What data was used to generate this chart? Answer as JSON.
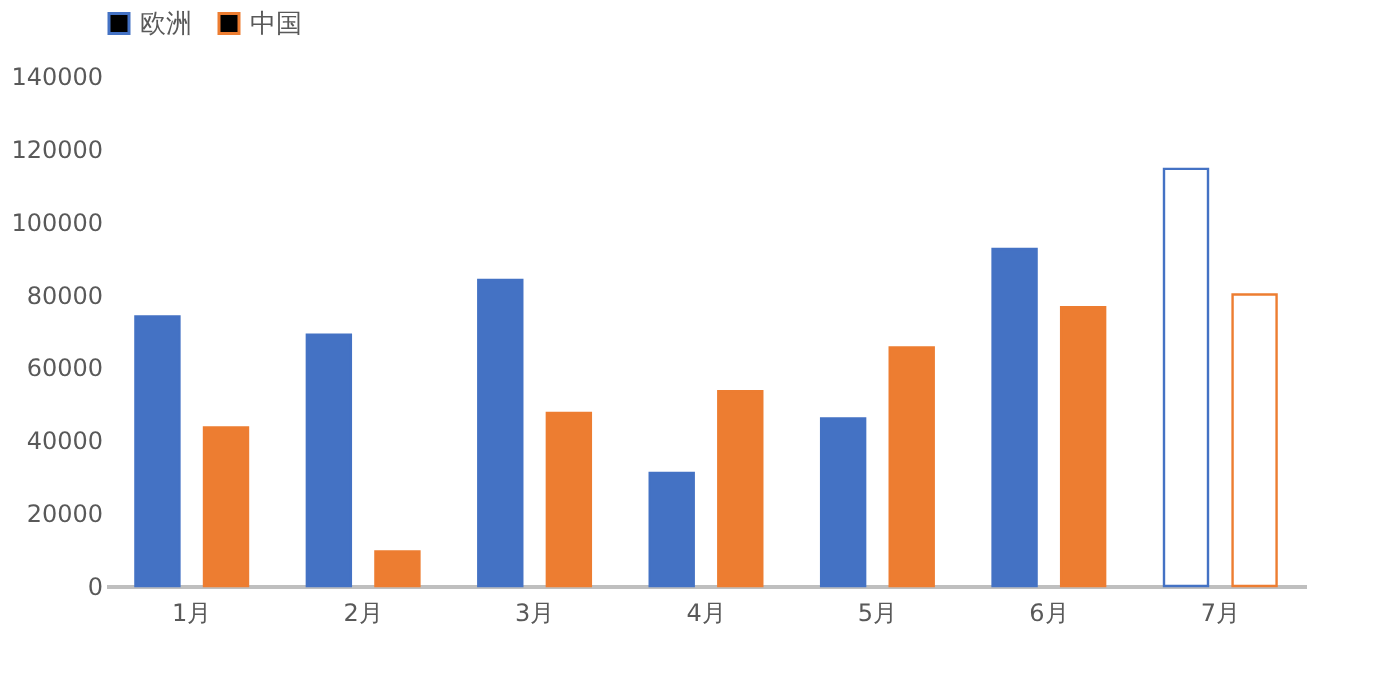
{
  "chart_data": {
    "type": "bar",
    "categories": [
      "1月",
      "2月",
      "3月",
      "4月",
      "5月",
      "6月",
      "7月"
    ],
    "series": [
      {
        "name": "欧洲",
        "color": "#4472c4",
        "colors": [
          "#4472c4",
          "#4472c4",
          "#4472c4",
          "#4472c4",
          "#4472c4",
          "#4472c4",
          "#ffffff"
        ],
        "values": [
          74000,
          69000,
          84000,
          31000,
          46000,
          92500,
          114500
        ]
      },
      {
        "name": "中国",
        "color": "#ed7d31",
        "colors": [
          "#ed7d31",
          "#ed7d31",
          "#ed7d31",
          "#ed7d31",
          "#ed7d31",
          "#ed7d31",
          "#ffffff"
        ],
        "values": [
          43500,
          9500,
          47500,
          53500,
          65500,
          76500,
          80000
        ]
      }
    ],
    "ylim": [
      0,
      140000
    ],
    "yticks": [
      0,
      20000,
      40000,
      60000,
      80000,
      100000,
      120000,
      140000
    ],
    "grid": false,
    "legend": "top"
  }
}
